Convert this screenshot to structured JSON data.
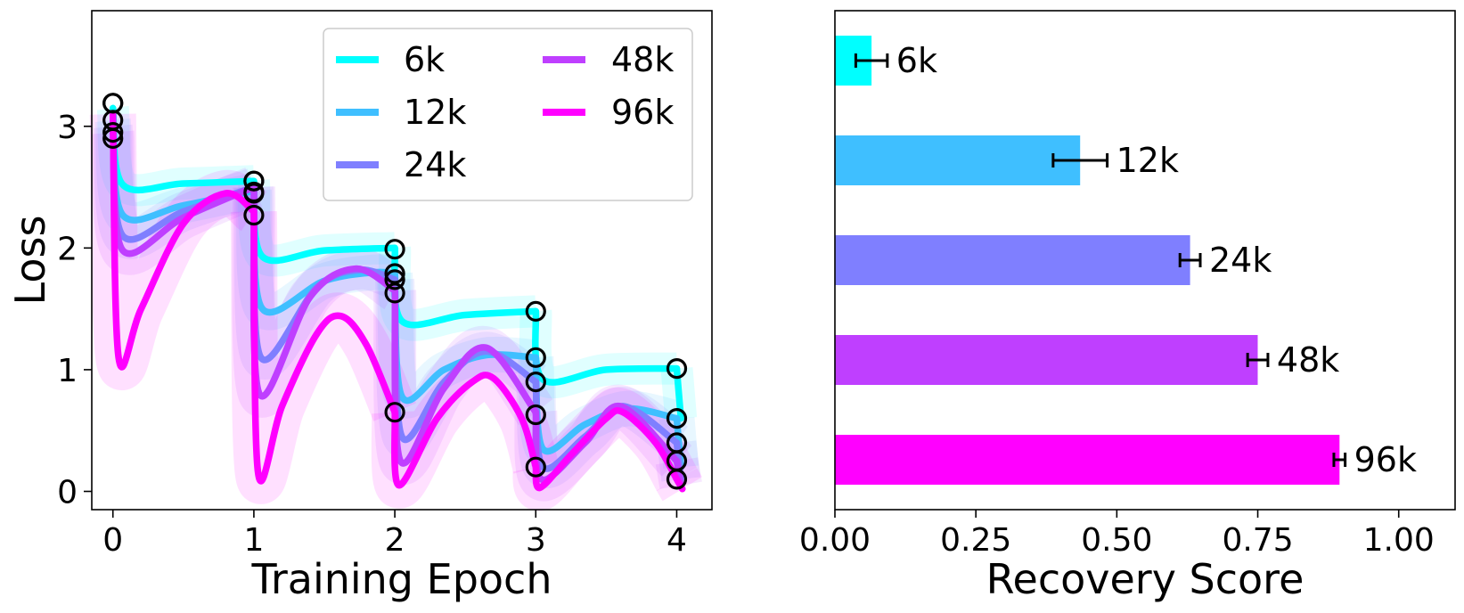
{
  "chart_data": [
    {
      "type": "line",
      "title": "",
      "xlabel": "Training Epoch",
      "ylabel": "Loss",
      "xlim": [
        -0.15,
        4.25
      ],
      "ylim": [
        -0.15,
        3.95
      ],
      "xticks": [
        0,
        1,
        2,
        3,
        4
      ],
      "yticks": [
        0,
        1,
        2,
        3
      ],
      "grid": false,
      "legend": {
        "placement": "top-right",
        "columns": 2
      },
      "series": [
        {
          "name": "6k",
          "color": "#00ffff",
          "segments": [
            [
              [
                0,
                3.15
              ],
              [
                0.07,
                2.52
              ],
              [
                0.5,
                2.53
              ],
              [
                1,
                2.55
              ]
            ],
            [
              [
                1,
                2.55
              ],
              [
                1.06,
                1.93
              ],
              [
                1.5,
                1.98
              ],
              [
                2,
                2.0
              ]
            ],
            [
              [
                2,
                2.0
              ],
              [
                2.05,
                1.4
              ],
              [
                2.5,
                1.45
              ],
              [
                3,
                1.48
              ]
            ],
            [
              [
                3,
                1.48
              ],
              [
                3.05,
                0.92
              ],
              [
                3.5,
                1.0
              ],
              [
                4,
                1.01
              ]
            ],
            [
              [
                4,
                1.01
              ],
              [
                4.03,
                0.6
              ]
            ]
          ],
          "markers": [
            [
              0,
              3.19
            ],
            [
              1,
              2.55
            ],
            [
              2,
              1.99
            ],
            [
              3,
              1.48
            ],
            [
              4,
              1.01
            ]
          ]
        },
        {
          "name": "12k",
          "color": "#3fbfff",
          "segments": [
            [
              [
                0,
                3.05
              ],
              [
                0.07,
                2.27
              ],
              [
                0.5,
                2.35
              ],
              [
                1,
                2.47
              ]
            ],
            [
              [
                1,
                2.47
              ],
              [
                1.06,
                1.5
              ],
              [
                1.5,
                1.73
              ],
              [
                1.85,
                1.8
              ],
              [
                2,
                1.79
              ]
            ],
            [
              [
                2,
                1.79
              ],
              [
                2.05,
                0.78
              ],
              [
                2.35,
                1.0
              ],
              [
                2.65,
                1.12
              ],
              [
                3,
                1.1
              ]
            ],
            [
              [
                3,
                1.1
              ],
              [
                3.05,
                0.35
              ],
              [
                3.35,
                0.55
              ],
              [
                3.65,
                0.68
              ],
              [
                4,
                0.6
              ]
            ],
            [
              [
                4,
                0.6
              ],
              [
                4.03,
                0.2
              ]
            ]
          ],
          "markers": [
            [
              0,
              3.05
            ],
            [
              1,
              2.46
            ],
            [
              2,
              1.79
            ],
            [
              3,
              1.1
            ],
            [
              4,
              0.6
            ]
          ]
        },
        {
          "name": "24k",
          "color": "#7f7fff",
          "segments": [
            [
              [
                0,
                3.0
              ],
              [
                0.07,
                2.1
              ],
              [
                0.5,
                2.3
              ],
              [
                1,
                2.5
              ]
            ],
            [
              [
                1,
                2.5
              ],
              [
                1.05,
                1.1
              ],
              [
                1.45,
                1.68
              ],
              [
                1.75,
                1.82
              ],
              [
                2,
                1.74
              ]
            ],
            [
              [
                2,
                1.74
              ],
              [
                2.05,
                0.45
              ],
              [
                2.35,
                0.9
              ],
              [
                2.65,
                1.15
              ],
              [
                3,
                0.9
              ]
            ],
            [
              [
                3,
                0.9
              ],
              [
                3.05,
                0.2
              ],
              [
                3.35,
                0.45
              ],
              [
                3.62,
                0.7
              ],
              [
                4,
                0.4
              ]
            ],
            [
              [
                4,
                0.4
              ],
              [
                4.03,
                0.1
              ]
            ]
          ],
          "markers": [
            [
              0,
              2.95
            ],
            [
              1,
              2.45
            ],
            [
              2,
              1.74
            ],
            [
              3,
              0.9
            ],
            [
              4,
              0.4
            ]
          ]
        },
        {
          "name": "48k",
          "color": "#bf3fff",
          "segments": [
            [
              [
                0,
                2.95
              ],
              [
                0.07,
                1.98
              ],
              [
                0.5,
                2.25
              ],
              [
                1,
                2.5
              ]
            ],
            [
              [
                1,
                2.5
              ],
              [
                1.04,
                0.8
              ],
              [
                1.4,
                1.6
              ],
              [
                1.72,
                1.83
              ],
              [
                2,
                1.65
              ]
            ],
            [
              [
                2,
                1.65
              ],
              [
                2.04,
                0.25
              ],
              [
                2.35,
                0.85
              ],
              [
                2.65,
                1.18
              ],
              [
                3,
                0.65
              ]
            ],
            [
              [
                3,
                0.65
              ],
              [
                3.04,
                0.1
              ],
              [
                3.35,
                0.4
              ],
              [
                3.6,
                0.7
              ],
              [
                4,
                0.25
              ]
            ],
            [
              [
                4,
                0.25
              ],
              [
                4.03,
                0.05
              ]
            ]
          ],
          "markers": [
            [
              0,
              2.9
            ],
            [
              1,
              2.27
            ],
            [
              2,
              1.63
            ],
            [
              3,
              0.63
            ],
            [
              4,
              0.25
            ]
          ]
        },
        {
          "name": "96k",
          "color": "#ff00ff",
          "segments": [
            [
              [
                0,
                3.1
              ],
              [
                0.04,
                1.1
              ],
              [
                0.2,
                1.5
              ],
              [
                0.5,
                2.2
              ],
              [
                0.8,
                2.45
              ],
              [
                1,
                2.3
              ]
            ],
            [
              [
                1,
                2.3
              ],
              [
                1.03,
                0.15
              ],
              [
                1.2,
                0.7
              ],
              [
                1.45,
                1.3
              ],
              [
                1.62,
                1.44
              ],
              [
                1.8,
                1.2
              ],
              [
                2,
                0.65
              ]
            ],
            [
              [
                2,
                0.65
              ],
              [
                2.03,
                0.05
              ],
              [
                2.3,
                0.6
              ],
              [
                2.55,
                0.9
              ],
              [
                2.7,
                0.93
              ],
              [
                2.9,
                0.6
              ],
              [
                3,
                0.2
              ]
            ],
            [
              [
                3,
                0.2
              ],
              [
                3.03,
                0.03
              ],
              [
                3.25,
                0.3
              ],
              [
                3.5,
                0.6
              ],
              [
                3.62,
                0.65
              ],
              [
                3.85,
                0.4
              ],
              [
                4,
                0.1
              ]
            ],
            [
              [
                4,
                0.1
              ],
              [
                4.04,
                0.02
              ]
            ]
          ],
          "markers": [
            [
              0,
              3.19
            ],
            [
              1,
              2.55
            ],
            [
              2,
              0.65
            ],
            [
              3,
              0.2
            ],
            [
              4,
              0.1
            ]
          ]
        }
      ]
    },
    {
      "type": "bar",
      "orientation": "horizontal",
      "title": "",
      "xlabel": "Recovery Score",
      "ylabel": "",
      "xlim": [
        0,
        1.1
      ],
      "xticks": [
        "0.00",
        "0.25",
        "0.50",
        "0.75",
        "1.00"
      ],
      "categories": [
        "6k",
        "12k",
        "24k",
        "48k",
        "96k"
      ],
      "values": [
        0.065,
        0.435,
        0.63,
        0.75,
        0.895
      ],
      "errors": [
        0.028,
        0.048,
        0.018,
        0.018,
        0.01
      ],
      "colors": [
        "#00ffff",
        "#3fbfff",
        "#7f7fff",
        "#bf3fff",
        "#ff00ff"
      ],
      "grid": false
    }
  ]
}
